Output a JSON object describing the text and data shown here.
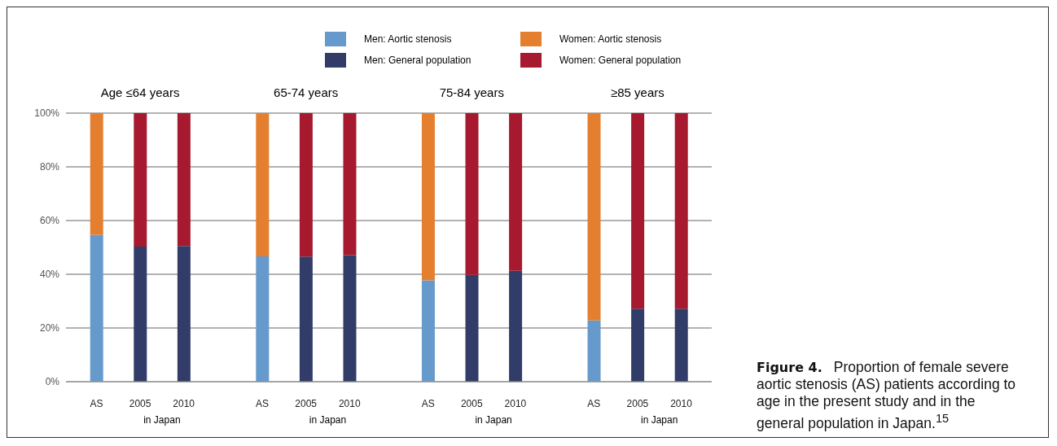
{
  "chart_data": {
    "type": "bar",
    "stacked": true,
    "title": "Figure 4.",
    "subtitle": "Proportion of female severe aortic stenosis (AS) patients according to age in the present study and in the general population in Japan.$^{15}$",
    "categories": [
      "AS",
      "2005",
      "2010",
      "AS",
      "2005",
      "2010",
      "AS",
      "2005",
      "2010",
      "AS",
      "2005",
      "2010"
    ],
    "series": [
      {
        "name": "Men: Aortic stenosis",
        "color": "#6699cc",
        "values": [
          54.7,
          null,
          null,
          46.7,
          null,
          null,
          37.7,
          null,
          null,
          22.8,
          null,
          null
        ]
      },
      {
        "name": "Men: General population",
        "color": "#313d68",
        "values": [
          null,
          50.3,
          50.5,
          null,
          46.6,
          47.1,
          null,
          39.8,
          41.3,
          null,
          27.2,
          27.2
        ]
      },
      {
        "name": "Women: Aortic stenosis",
        "color": "#e47f30",
        "values": [
          45.3,
          null,
          null,
          53.3,
          null,
          null,
          62.3,
          null,
          null,
          77.2,
          null,
          null
        ]
      },
      {
        "name": "Women: General population",
        "color": "#a6192e",
        "values": [
          null,
          49.7,
          49.5,
          null,
          53.4,
          52.9,
          null,
          60.2,
          58.7,
          null,
          72.8,
          72.8
        ]
      }
    ],
    "annotations": [
      "Age ≤64 years",
      "65-74 years",
      "75-84 years",
      "≥85 years",
      "in Japan",
      "in Japan",
      "in Japan",
      "in Japan"
    ],
    "ylim": [
      0,
      100
    ],
    "yticks": [
      {
        "value": 0,
        "label": "0%"
      },
      {
        "value": 20,
        "label": "20%"
      },
      {
        "value": 40,
        "label": "40%"
      },
      {
        "value": 60,
        "label": "60%"
      },
      {
        "value": 80,
        "label": "80%"
      },
      {
        "value": 100,
        "label": "100%"
      }
    ],
    "grid": "y",
    "legend": "top"
  }
}
